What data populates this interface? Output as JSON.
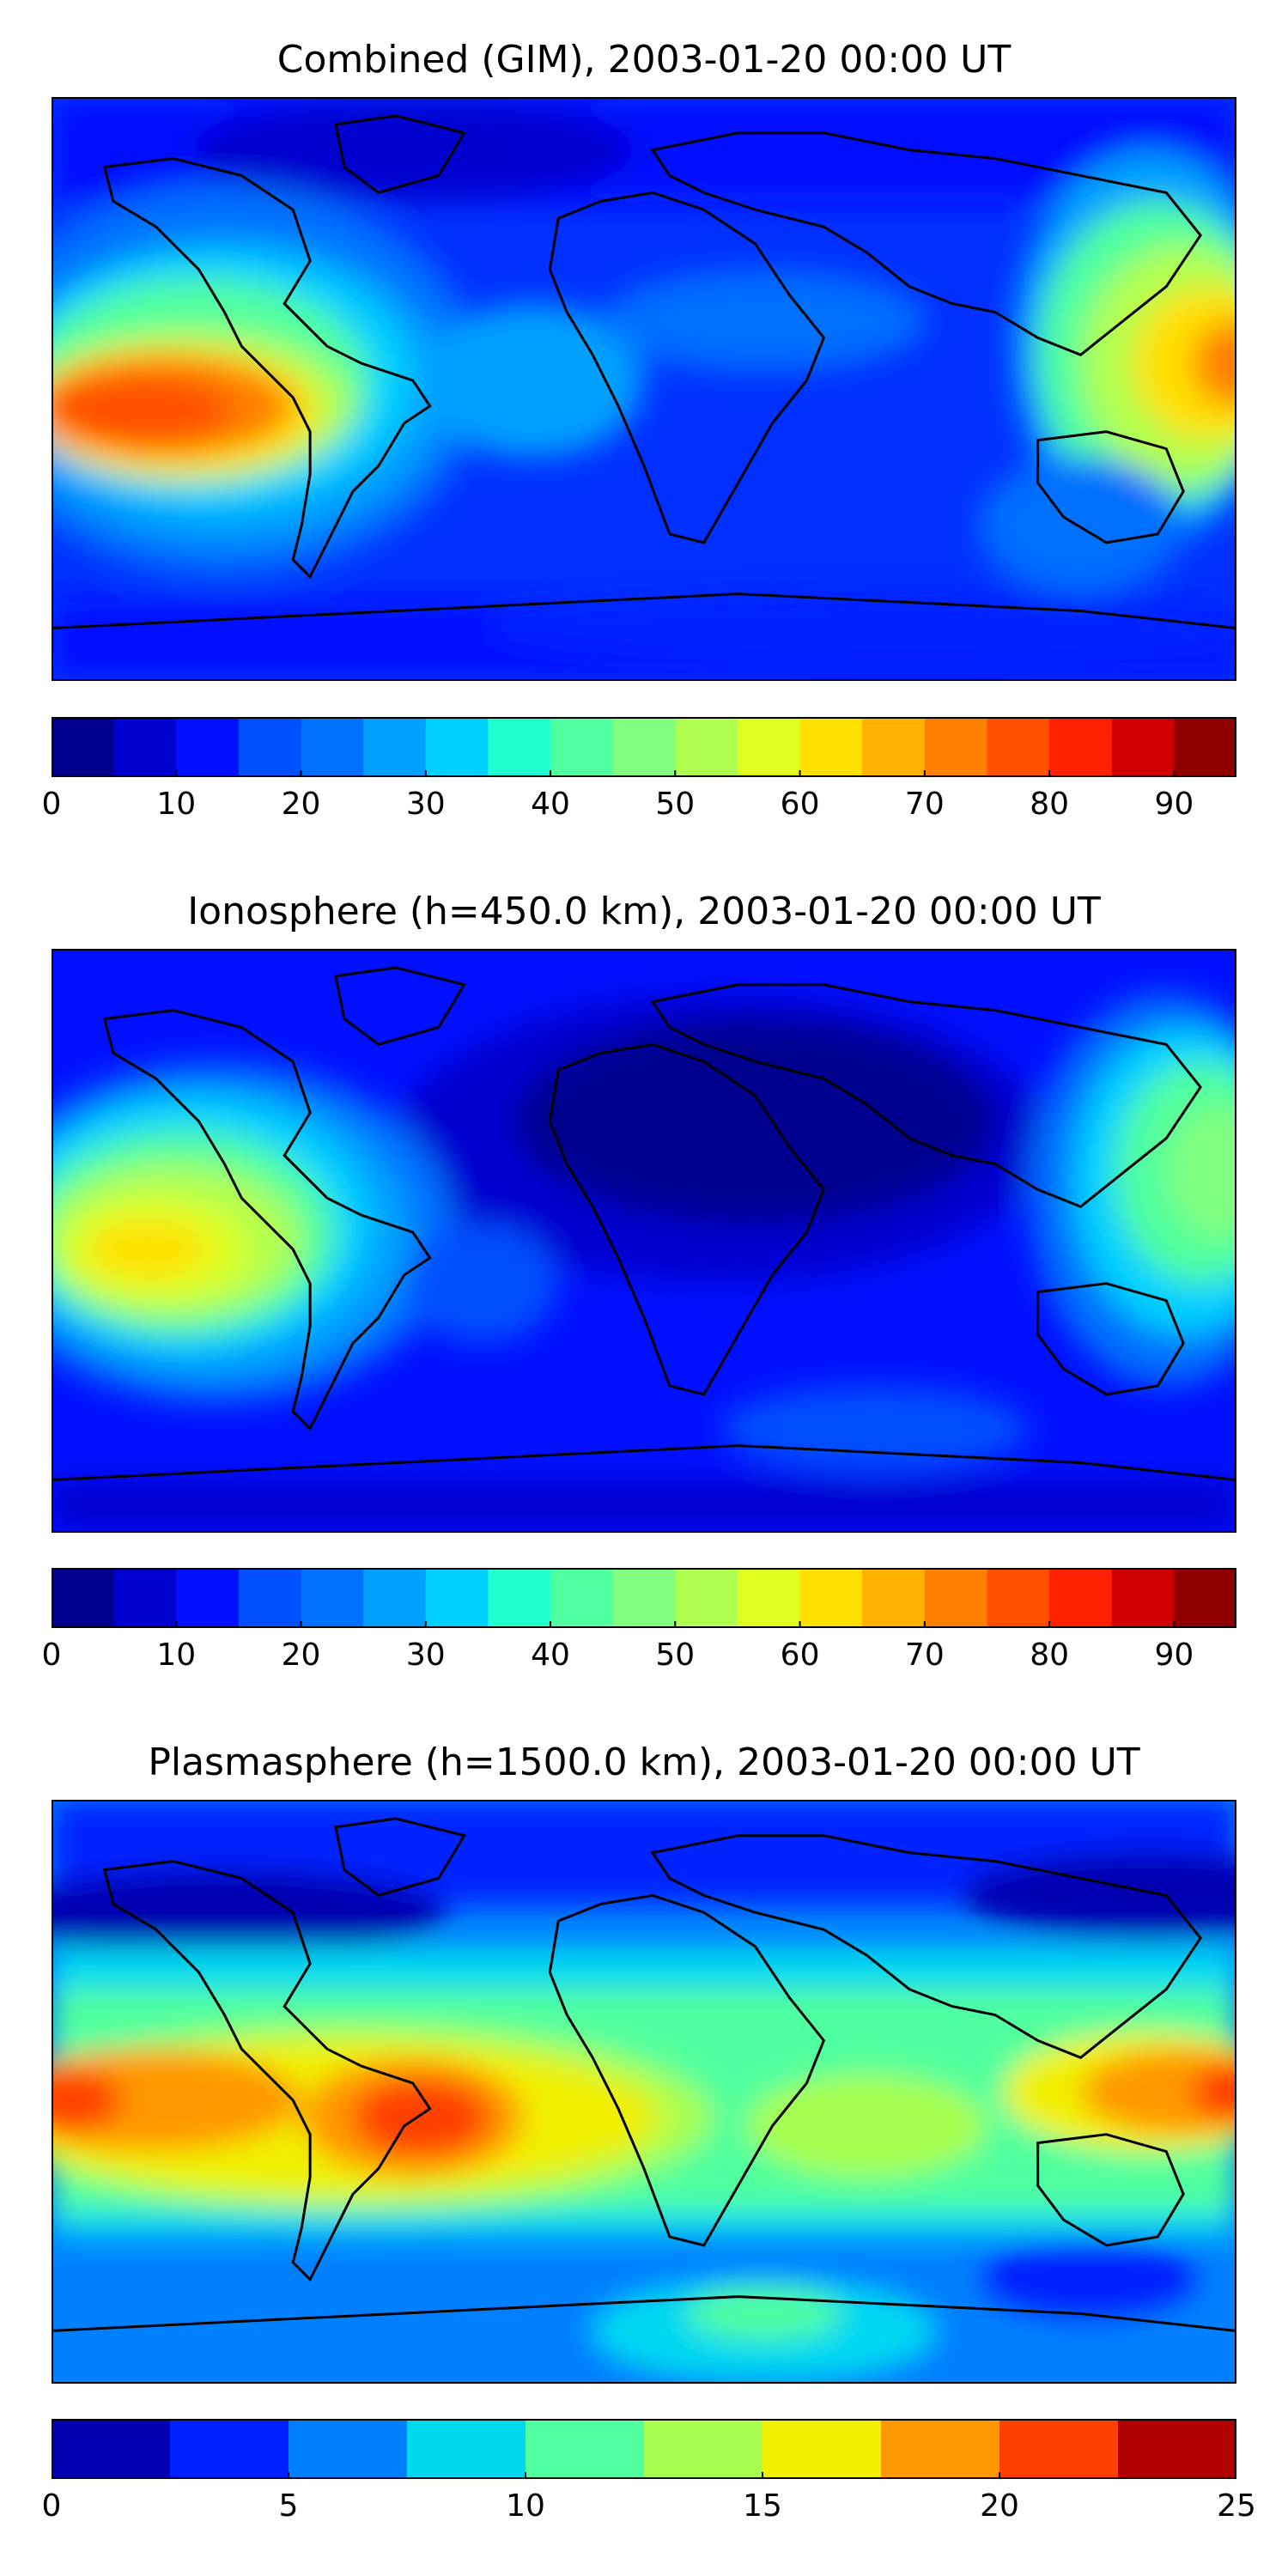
{
  "panels": [
    {
      "title": "Combined (GIM), 2003-01-20 00:00 UT",
      "colorbar": {
        "levels": [
          0,
          5,
          10,
          15,
          20,
          25,
          30,
          35,
          40,
          45,
          50,
          55,
          60,
          65,
          70,
          75,
          80,
          85,
          90,
          95
        ],
        "colors": [
          "#00008f",
          "#0000cf",
          "#0010ff",
          "#0050ff",
          "#0070ff",
          "#00a0ff",
          "#00d0ff",
          "#20ffd0",
          "#50ff9f",
          "#80ff80",
          "#b0ff50",
          "#e0ff20",
          "#ffe000",
          "#ffb000",
          "#ff8000",
          "#ff5000",
          "#ff2000",
          "#d00000",
          "#900000"
        ],
        "tick_labels": [
          "0",
          "10",
          "20",
          "30",
          "40",
          "50",
          "60",
          "70",
          "80",
          "90"
        ],
        "tick_values": [
          0,
          10,
          20,
          30,
          40,
          50,
          60,
          70,
          80,
          90
        ]
      }
    },
    {
      "title": "Ionosphere  (h=450.0 km), 2003-01-20 00:00 UT",
      "colorbar": {
        "levels": [
          0,
          5,
          10,
          15,
          20,
          25,
          30,
          35,
          40,
          45,
          50,
          55,
          60,
          65,
          70,
          75,
          80,
          85,
          90,
          95
        ],
        "colors": [
          "#00008f",
          "#0000cf",
          "#0010ff",
          "#0050ff",
          "#0070ff",
          "#00a0ff",
          "#00d0ff",
          "#20ffd0",
          "#50ff9f",
          "#80ff80",
          "#b0ff50",
          "#e0ff20",
          "#ffe000",
          "#ffb000",
          "#ff8000",
          "#ff5000",
          "#ff2000",
          "#d00000",
          "#900000"
        ],
        "tick_labels": [
          "0",
          "10",
          "20",
          "30",
          "40",
          "50",
          "60",
          "70",
          "80",
          "90"
        ],
        "tick_values": [
          0,
          10,
          20,
          30,
          40,
          50,
          60,
          70,
          80,
          90
        ]
      }
    },
    {
      "title": "Plasmasphere (h=1500.0 km), 2003-01-20 00:00 UT",
      "colorbar": {
        "levels": [
          0,
          2.5,
          5,
          7.5,
          10,
          12.5,
          15,
          17.5,
          20,
          22.5,
          25
        ],
        "colors": [
          "#0000b0",
          "#0020ff",
          "#0080ff",
          "#00d8f0",
          "#50ffa0",
          "#a8ff50",
          "#f0f000",
          "#ff9800",
          "#ff4000",
          "#b00000"
        ],
        "tick_labels": [
          "0",
          "5",
          "10",
          "15",
          "20",
          "25"
        ],
        "tick_values": [
          0,
          5,
          10,
          15,
          20,
          25
        ]
      }
    }
  ],
  "chart_data": [
    {
      "type": "heatmap",
      "title": "Combined (GIM), 2003-01-20 00:00 UT",
      "colorbar_range": [
        0,
        95
      ],
      "colorbar_levels_step": 5,
      "features": [
        {
          "description": "maximum over central Pacific near equator",
          "value_approx": 80
        },
        {
          "description": "secondary maximum over western Pacific / Philippines",
          "value_approx": 65
        },
        {
          "description": "background at high latitudes",
          "value_approx": 10
        }
      ]
    },
    {
      "type": "heatmap",
      "title": "Ionosphere  (h=450.0 km), 2003-01-20 00:00 UT",
      "colorbar_range": [
        0,
        95
      ],
      "colorbar_levels_step": 5,
      "features": [
        {
          "description": "maximum over central Pacific",
          "value_approx": 62
        },
        {
          "description": "maximum over western Pacific",
          "value_approx": 50
        },
        {
          "description": "minimum over Africa / Atlantic",
          "value_approx": 3
        }
      ]
    },
    {
      "type": "heatmap",
      "title": "Plasmasphere (h=1500.0 km), 2003-01-20 00:00 UT",
      "colorbar_range": [
        0,
        25
      ],
      "colorbar_levels_step": 2.5,
      "features": [
        {
          "description": "maximum over South America",
          "value_approx": 21
        },
        {
          "description": "maximum over central Pacific",
          "value_approx": 21
        },
        {
          "description": "low values at high latitudes",
          "value_approx": 2
        }
      ]
    }
  ]
}
